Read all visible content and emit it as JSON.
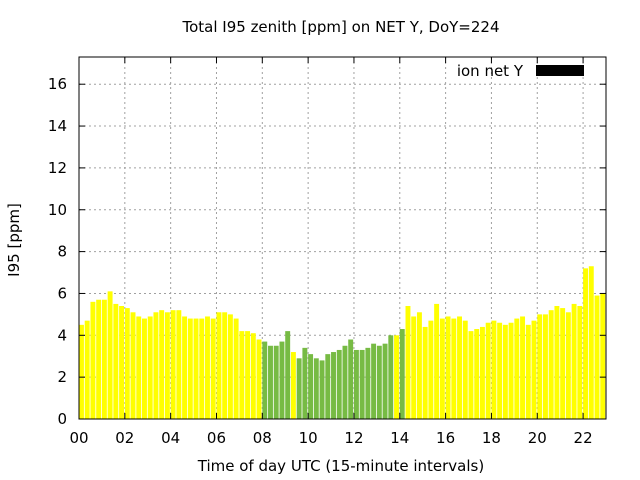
{
  "chart_data": {
    "type": "bar",
    "title": "Total I95 zenith [ppm] on NET Y, DoY=224",
    "xlabel": "Time of day UTC (15-minute intervals)",
    "ylabel": "I95 [ppm]",
    "xlim": [
      0,
      23
    ],
    "ylim": [
      0,
      17.3
    ],
    "x_tick_labels": [
      "00",
      "02",
      "04",
      "06",
      "08",
      "10",
      "12",
      "14",
      "16",
      "18",
      "20",
      "22"
    ],
    "x_tick_values": [
      0,
      2,
      4,
      6,
      8,
      10,
      12,
      14,
      16,
      18,
      20,
      22
    ],
    "y_tick_labels": [
      "0",
      "2",
      "4",
      "6",
      "8",
      "10",
      "12",
      "14",
      "16"
    ],
    "y_tick_values": [
      0,
      2,
      4,
      6,
      8,
      10,
      12,
      14,
      16
    ],
    "grid": true,
    "legend": {
      "label": "ion net Y",
      "placement": "top-right",
      "color": "#000000"
    },
    "bar_interval_hours": 0.25,
    "colors": {
      "yellow": "#ffff00",
      "green": "#77bb44"
    },
    "series": [
      {
        "x": [
          0.0,
          0.25,
          0.5,
          0.75,
          1.0,
          1.25,
          1.5,
          1.75,
          2.0,
          2.25,
          2.5,
          2.75,
          3.0,
          3.25,
          3.5,
          3.75,
          4.0,
          4.25,
          4.5,
          4.75,
          5.0,
          5.25,
          5.5,
          5.75,
          6.0,
          6.25,
          6.5,
          6.75,
          7.0,
          7.25,
          7.5,
          7.75,
          8.0,
          8.25,
          8.5,
          8.75,
          9.0,
          9.25,
          9.5,
          9.75,
          10.0,
          10.25,
          10.5,
          10.75,
          11.0,
          11.25,
          11.5,
          11.75,
          12.0,
          12.25,
          12.5,
          12.75,
          13.0,
          13.25,
          13.5,
          13.75,
          14.0,
          14.25,
          14.5,
          14.75,
          15.0,
          15.25,
          15.5,
          15.75,
          16.0,
          16.25,
          16.5,
          16.75,
          17.0,
          17.25,
          17.5,
          17.75,
          18.0,
          18.25,
          18.5,
          18.75,
          19.0,
          19.25,
          19.5,
          19.75,
          20.0,
          20.25,
          20.5,
          20.75,
          21.0,
          21.25,
          21.5,
          21.75,
          22.0,
          22.25,
          22.5,
          22.75
        ],
        "values": [
          4.5,
          4.7,
          5.6,
          5.7,
          5.7,
          6.1,
          5.5,
          5.4,
          5.3,
          5.1,
          4.9,
          4.8,
          4.9,
          5.1,
          5.2,
          5.1,
          5.2,
          5.2,
          4.9,
          4.8,
          4.8,
          4.8,
          4.9,
          4.8,
          5.1,
          5.1,
          5.0,
          4.8,
          4.2,
          4.2,
          4.1,
          3.8,
          3.7,
          3.5,
          3.5,
          3.7,
          4.2,
          3.2,
          2.9,
          3.4,
          3.1,
          2.9,
          2.8,
          3.1,
          3.2,
          3.3,
          3.5,
          3.8,
          3.3,
          3.3,
          3.4,
          3.6,
          3.5,
          3.6,
          4.0,
          4.0,
          4.3,
          5.4,
          4.9,
          5.1,
          4.4,
          4.7,
          5.5,
          4.8,
          4.9,
          4.8,
          4.9,
          4.7,
          4.2,
          4.3,
          4.4,
          4.6,
          4.7,
          4.6,
          4.5,
          4.6,
          4.8,
          4.9,
          4.5,
          4.7,
          5.0,
          5.0,
          5.2,
          5.4,
          5.3,
          5.1,
          5.5,
          5.4,
          7.2,
          7.3,
          5.9,
          6.0
        ],
        "colors": [
          "yellow",
          "yellow",
          "yellow",
          "yellow",
          "yellow",
          "yellow",
          "yellow",
          "yellow",
          "yellow",
          "yellow",
          "yellow",
          "yellow",
          "yellow",
          "yellow",
          "yellow",
          "yellow",
          "yellow",
          "yellow",
          "yellow",
          "yellow",
          "yellow",
          "yellow",
          "yellow",
          "yellow",
          "yellow",
          "yellow",
          "yellow",
          "yellow",
          "yellow",
          "yellow",
          "yellow",
          "yellow",
          "green",
          "green",
          "green",
          "green",
          "green",
          "yellow",
          "green",
          "green",
          "green",
          "green",
          "green",
          "green",
          "green",
          "green",
          "green",
          "green",
          "green",
          "green",
          "green",
          "green",
          "green",
          "green",
          "green",
          "yellow",
          "green",
          "yellow",
          "yellow",
          "yellow",
          "yellow",
          "yellow",
          "yellow",
          "yellow",
          "yellow",
          "yellow",
          "yellow",
          "yellow",
          "yellow",
          "yellow",
          "yellow",
          "yellow",
          "yellow",
          "yellow",
          "yellow",
          "yellow",
          "yellow",
          "yellow",
          "yellow",
          "yellow",
          "yellow",
          "yellow",
          "yellow",
          "yellow",
          "yellow",
          "yellow",
          "yellow",
          "yellow",
          "yellow",
          "yellow",
          "yellow",
          "yellow"
        ]
      }
    ]
  }
}
